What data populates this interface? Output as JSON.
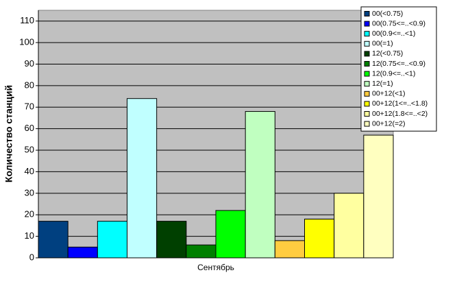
{
  "chart_data": {
    "type": "bar",
    "y_label": "Количество станций",
    "categories": [
      "Сентябрь"
    ],
    "series": [
      {
        "name": "00(<0.75)",
        "color": "#004080",
        "values": [
          17
        ]
      },
      {
        "name": "00(0.75<=..<0.9)",
        "color": "#0000ff",
        "values": [
          5
        ]
      },
      {
        "name": "00(0.9<=..<1)",
        "color": "#00ffff",
        "values": [
          17
        ]
      },
      {
        "name": "00(=1)",
        "color": "#c0ffff",
        "values": [
          74
        ]
      },
      {
        "name": "12(<0.75)",
        "color": "#004000",
        "values": [
          17
        ]
      },
      {
        "name": "12(0.75<=..<0.9)",
        "color": "#008000",
        "values": [
          6
        ]
      },
      {
        "name": "12(0.9<=..<1)",
        "color": "#00ff00",
        "values": [
          22
        ]
      },
      {
        "name": "12(=1)",
        "color": "#c0ffc0",
        "values": [
          68
        ]
      },
      {
        "name": "00+12(<1)",
        "color": "#ffcc40",
        "values": [
          8
        ]
      },
      {
        "name": "00+12(1<=..<1.8)",
        "color": "#ffff00",
        "values": [
          18
        ]
      },
      {
        "name": "00+12(1.8<=..<2)",
        "color": "#ffffa0",
        "values": [
          30
        ]
      },
      {
        "name": "00+12(=2)",
        "color": "#ffffc0",
        "values": [
          57
        ]
      }
    ],
    "ylim": [
      0,
      115
    ],
    "yticks": [
      0,
      10,
      20,
      30,
      40,
      50,
      60,
      70,
      80,
      90,
      100,
      110
    ],
    "grid": true,
    "legend": "top-right"
  }
}
